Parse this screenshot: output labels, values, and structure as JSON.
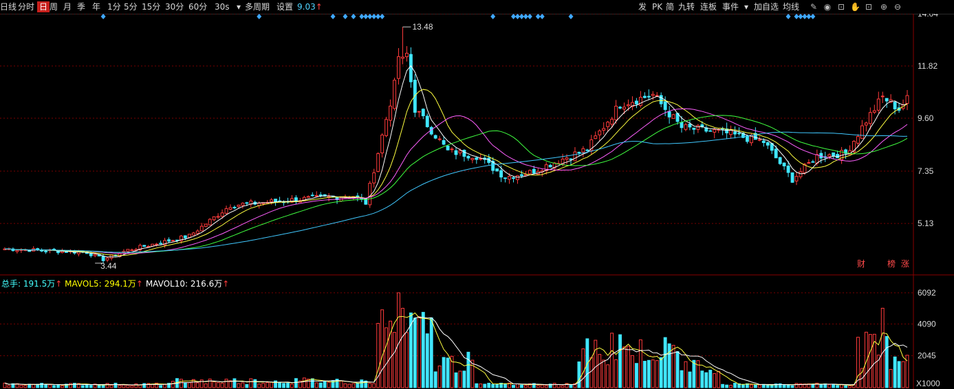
{
  "toolbar": {
    "left_items": [
      {
        "label": "日线",
        "active": false
      },
      {
        "label": "分时",
        "active": false
      },
      {
        "label": "日",
        "active": true
      },
      {
        "label": "周",
        "active": false
      },
      {
        "label": "月",
        "active": false
      },
      {
        "label": "季",
        "active": false
      },
      {
        "label": "年",
        "active": false
      },
      {
        "label": "1分",
        "active": false
      },
      {
        "label": "5分",
        "active": false
      },
      {
        "label": "15分",
        "active": false
      },
      {
        "label": "30分",
        "active": false
      },
      {
        "label": "60分",
        "active": false
      },
      {
        "label": "30s",
        "active": false
      },
      {
        "label": "多周期",
        "active": false
      },
      {
        "label": "设置",
        "active": false
      }
    ],
    "version": "9.03",
    "version_arrow": "↑",
    "right_items": [
      {
        "label": "发"
      },
      {
        "label": "PK"
      },
      {
        "label": "简"
      },
      {
        "label": "九转"
      },
      {
        "label": "连板"
      },
      {
        "label": "事件"
      },
      {
        "label": "加自选"
      },
      {
        "label": "均线"
      }
    ],
    "icons": [
      "draw-icon",
      "eye-icon",
      "lock-icon",
      "hand-icon",
      "lock-open-icon",
      "zoom-in-icon",
      "zoom-out-icon"
    ]
  },
  "price_axis": [
    "14.04",
    "11.82",
    "9.60",
    "7.35",
    "5.13"
  ],
  "volume_axis": [
    "6092",
    "4090",
    "2045"
  ],
  "volume_unit": "X1000",
  "annotations": {
    "high": "13.48",
    "low": "3.44"
  },
  "corner_tags": [
    "财",
    "榜",
    "涨"
  ],
  "volume_legend": {
    "total_label": "总手:",
    "total_value": "191.5万",
    "ma5_label": "MAVOL5:",
    "ma5_value": "294.1万",
    "ma10_label": "MAVOL10:",
    "ma10_value": "216.6万",
    "arrow": "↑"
  },
  "colors": {
    "up": "#ff3b3b",
    "down": "#40e6ff",
    "ma5": "#ffffff",
    "ma10": "#ffff40",
    "ma20": "#ff60ff",
    "ma30": "#40ff40",
    "ma60": "#40c8ff",
    "grid": "#7a0000",
    "signal": "#3fa8ff"
  },
  "chart_data": {
    "type": "candlestick",
    "price_range": [
      3.0,
      14.04
    ],
    "volume_range": [
      0,
      6092
    ],
    "candles_pct_of_price_path": "see script",
    "anchor_points": [
      {
        "i": 0,
        "close": 4.05
      },
      {
        "i": 20,
        "close": 3.9
      },
      {
        "i": 24,
        "close": 3.6
      },
      {
        "i": 30,
        "close": 4.0
      },
      {
        "i": 45,
        "close": 4.6
      },
      {
        "i": 55,
        "close": 5.9
      },
      {
        "i": 75,
        "close": 6.2
      },
      {
        "i": 85,
        "close": 6.3
      },
      {
        "i": 88,
        "close": 6.0
      },
      {
        "i": 95,
        "close": 11.0
      },
      {
        "i": 97,
        "close": 13.48
      },
      {
        "i": 100,
        "close": 10.0
      },
      {
        "i": 108,
        "close": 8.2
      },
      {
        "i": 115,
        "close": 8.0
      },
      {
        "i": 122,
        "close": 7.1
      },
      {
        "i": 128,
        "close": 7.3
      },
      {
        "i": 135,
        "close": 7.8
      },
      {
        "i": 142,
        "close": 8.3
      },
      {
        "i": 150,
        "close": 10.2
      },
      {
        "i": 158,
        "close": 10.6
      },
      {
        "i": 165,
        "close": 9.2
      },
      {
        "i": 175,
        "close": 9.0
      },
      {
        "i": 185,
        "close": 8.6
      },
      {
        "i": 192,
        "close": 7.0
      },
      {
        "i": 198,
        "close": 8.0
      },
      {
        "i": 205,
        "close": 8.1
      },
      {
        "i": 210,
        "close": 9.5
      },
      {
        "i": 214,
        "close": 10.5
      },
      {
        "i": 218,
        "close": 10.0
      },
      {
        "i": 220,
        "close": 10.4
      }
    ],
    "volume_peaks": [
      {
        "i": 96,
        "volume": 6092
      },
      {
        "i": 99,
        "volume": 4800
      },
      {
        "i": 92,
        "volume": 5000
      },
      {
        "i": 214,
        "volume": 5100
      },
      {
        "i": 150,
        "volume": 3400
      },
      {
        "i": 148,
        "volume": 3500
      }
    ]
  }
}
